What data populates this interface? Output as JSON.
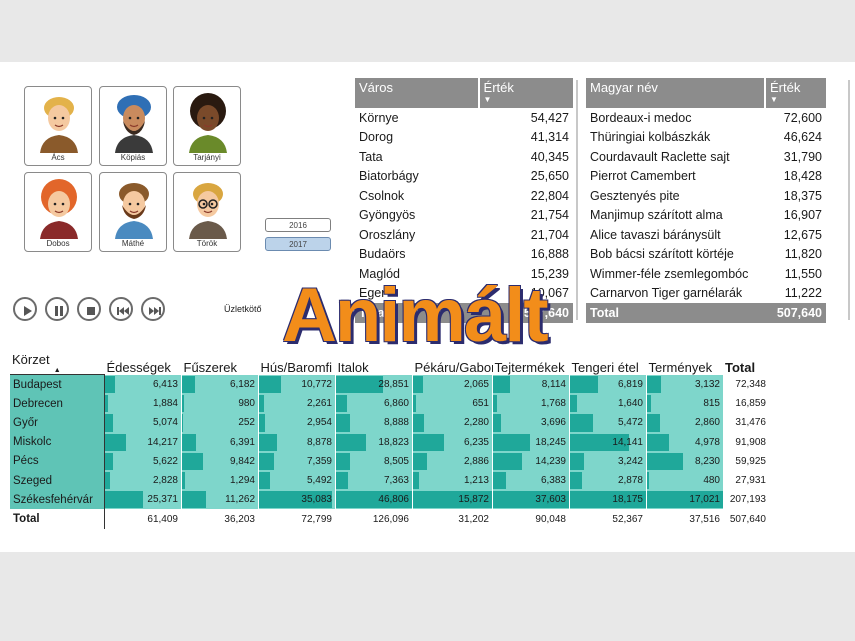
{
  "watermark": "Animált",
  "avatars": [
    {
      "name": "Ács",
      "icon": "woman-blonde-avatar-icon"
    },
    {
      "name": "Köpiás",
      "icon": "man-turban-avatar-icon"
    },
    {
      "name": "Tarjányi",
      "icon": "woman-curly-avatar-icon"
    },
    {
      "name": "Dobos",
      "icon": "woman-red-hair-avatar-icon"
    },
    {
      "name": "Máthé",
      "icon": "man-beard-avatar-icon"
    },
    {
      "name": "Török",
      "icon": "man-glasses-avatar-icon"
    }
  ],
  "years": [
    {
      "label": "2016",
      "selected": false
    },
    {
      "label": "2017",
      "selected": true
    }
  ],
  "player": {
    "label": "Üzletkötő",
    "buttons": [
      "play-icon",
      "pause-icon",
      "stop-icon",
      "rewind-icon",
      "fast-forward-icon"
    ]
  },
  "city_table": {
    "headers": [
      "Város",
      "Érték"
    ],
    "rows": [
      [
        "Környe",
        "54,427"
      ],
      [
        "Dorog",
        "41,314"
      ],
      [
        "Tata",
        "40,345"
      ],
      [
        "Biatorbágy",
        "25,650"
      ],
      [
        "Csolnok",
        "22,804"
      ],
      [
        "Gyöngyös",
        "21,754"
      ],
      [
        "Oroszlány",
        "21,704"
      ],
      [
        "Budaörs",
        "16,888"
      ],
      [
        "Maglód",
        "15,239"
      ],
      [
        "Eger",
        "10,067"
      ]
    ],
    "total": [
      "Total",
      "507,640"
    ]
  },
  "product_table": {
    "headers": [
      "Magyar név",
      "Érték"
    ],
    "rows": [
      [
        "Bordeaux-i medoc",
        "72,600"
      ],
      [
        "Thüringiai kolbászkák",
        "46,624"
      ],
      [
        "Courdavault Raclette sajt",
        "31,790"
      ],
      [
        "Pierrot Camembert",
        "18,428"
      ],
      [
        "Gesztenyés pite",
        "18,375"
      ],
      [
        "Manjimup szárított alma",
        "16,907"
      ],
      [
        "Alice tavaszi báránysült",
        "12,675"
      ],
      [
        "Bob bácsi szárított körtéje",
        "11,820"
      ],
      [
        "Wimmer-féle zsemlegombóc",
        "11,550"
      ],
      [
        "Carnarvon Tiger garnélarák",
        "11,222"
      ]
    ],
    "total": [
      "Total",
      "507,640"
    ]
  },
  "matrix": {
    "row_header": "Körzet",
    "columns": [
      "Édességek",
      "Fűszerek",
      "Hús/Baromfi",
      "Italok",
      "Pékáru/Gabona",
      "Tejtermékek",
      "Tengeri étel",
      "Termények",
      "Total"
    ],
    "rows": [
      {
        "name": "Budapest",
        "values": [
          "6,413",
          "6,182",
          "10,772",
          "28,851",
          "2,065",
          "8,114",
          "6,819",
          "3,132",
          "72,348"
        ],
        "fill": [
          0.13,
          0.17,
          0.29,
          0.62,
          0.13,
          0.22,
          0.37,
          0.18
        ]
      },
      {
        "name": "Debrecen",
        "values": [
          "1,884",
          "980",
          "2,261",
          "6,860",
          "651",
          "1,768",
          "1,640",
          "815",
          "16,859"
        ],
        "fill": [
          0.04,
          0.03,
          0.06,
          0.15,
          0.04,
          0.05,
          0.09,
          0.05
        ]
      },
      {
        "name": "Győr",
        "values": [
          "5,074",
          "252",
          "2,954",
          "8,888",
          "2,280",
          "3,696",
          "5,472",
          "2,860",
          "31,476"
        ],
        "fill": [
          0.1,
          0.01,
          0.08,
          0.19,
          0.14,
          0.1,
          0.3,
          0.17
        ]
      },
      {
        "name": "Miskolc",
        "values": [
          "14,217",
          "6,391",
          "8,878",
          "18,823",
          "6,235",
          "18,245",
          "14,141",
          "4,978",
          "91,908"
        ],
        "fill": [
          0.28,
          0.18,
          0.24,
          0.4,
          0.39,
          0.49,
          0.78,
          0.29
        ]
      },
      {
        "name": "Pécs",
        "values": [
          "5,622",
          "9,842",
          "7,359",
          "8,505",
          "2,886",
          "14,239",
          "3,242",
          "8,230",
          "59,925"
        ],
        "fill": [
          0.11,
          0.27,
          0.2,
          0.18,
          0.18,
          0.38,
          0.18,
          0.48
        ]
      },
      {
        "name": "Szeged",
        "values": [
          "2,828",
          "1,294",
          "5,492",
          "7,363",
          "1,213",
          "6,383",
          "2,878",
          "480",
          "27,931"
        ],
        "fill": [
          0.06,
          0.04,
          0.15,
          0.16,
          0.08,
          0.17,
          0.16,
          0.03
        ]
      },
      {
        "name": "Székesfehérvár",
        "values": [
          "25,371",
          "11,262",
          "35,083",
          "46,806",
          "15,872",
          "37,603",
          "18,175",
          "17,021",
          "207,193"
        ],
        "fill": [
          0.5,
          0.31,
          0.96,
          1.0,
          1.0,
          1.0,
          1.0,
          1.0
        ]
      }
    ],
    "total": {
      "name": "Total",
      "values": [
        "61,409",
        "36,203",
        "72,799",
        "126,096",
        "31,202",
        "90,048",
        "52,367",
        "37,516",
        "507,640"
      ]
    }
  }
}
